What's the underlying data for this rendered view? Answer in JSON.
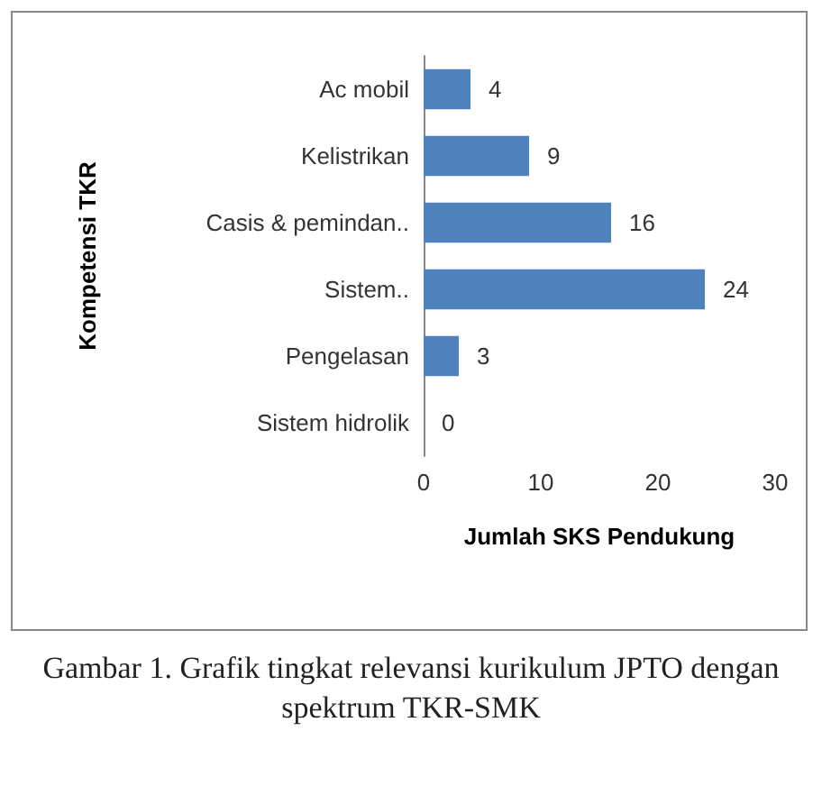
{
  "chart_data": {
    "type": "bar",
    "orientation": "horizontal",
    "categories": [
      "Ac mobil",
      "Kelistrikan",
      "Casis & pemindan..",
      "Sistem..",
      "Pengelasan",
      "Sistem hidrolik"
    ],
    "values": [
      4,
      9,
      16,
      24,
      3,
      0
    ],
    "color": "#4f81bd",
    "xlim": [
      0,
      30
    ],
    "xticks": [
      0,
      10,
      20,
      30
    ],
    "grid": false,
    "data_labels": true,
    "xlabel": "Jumlah SKS Pendukung",
    "ylabel": "Kompetensi TKR",
    "annotations": [
      "Gambar 1. Grafik  tingkat relevansi kurikulum JPTO dengan spektrum TKR-SMK"
    ]
  }
}
